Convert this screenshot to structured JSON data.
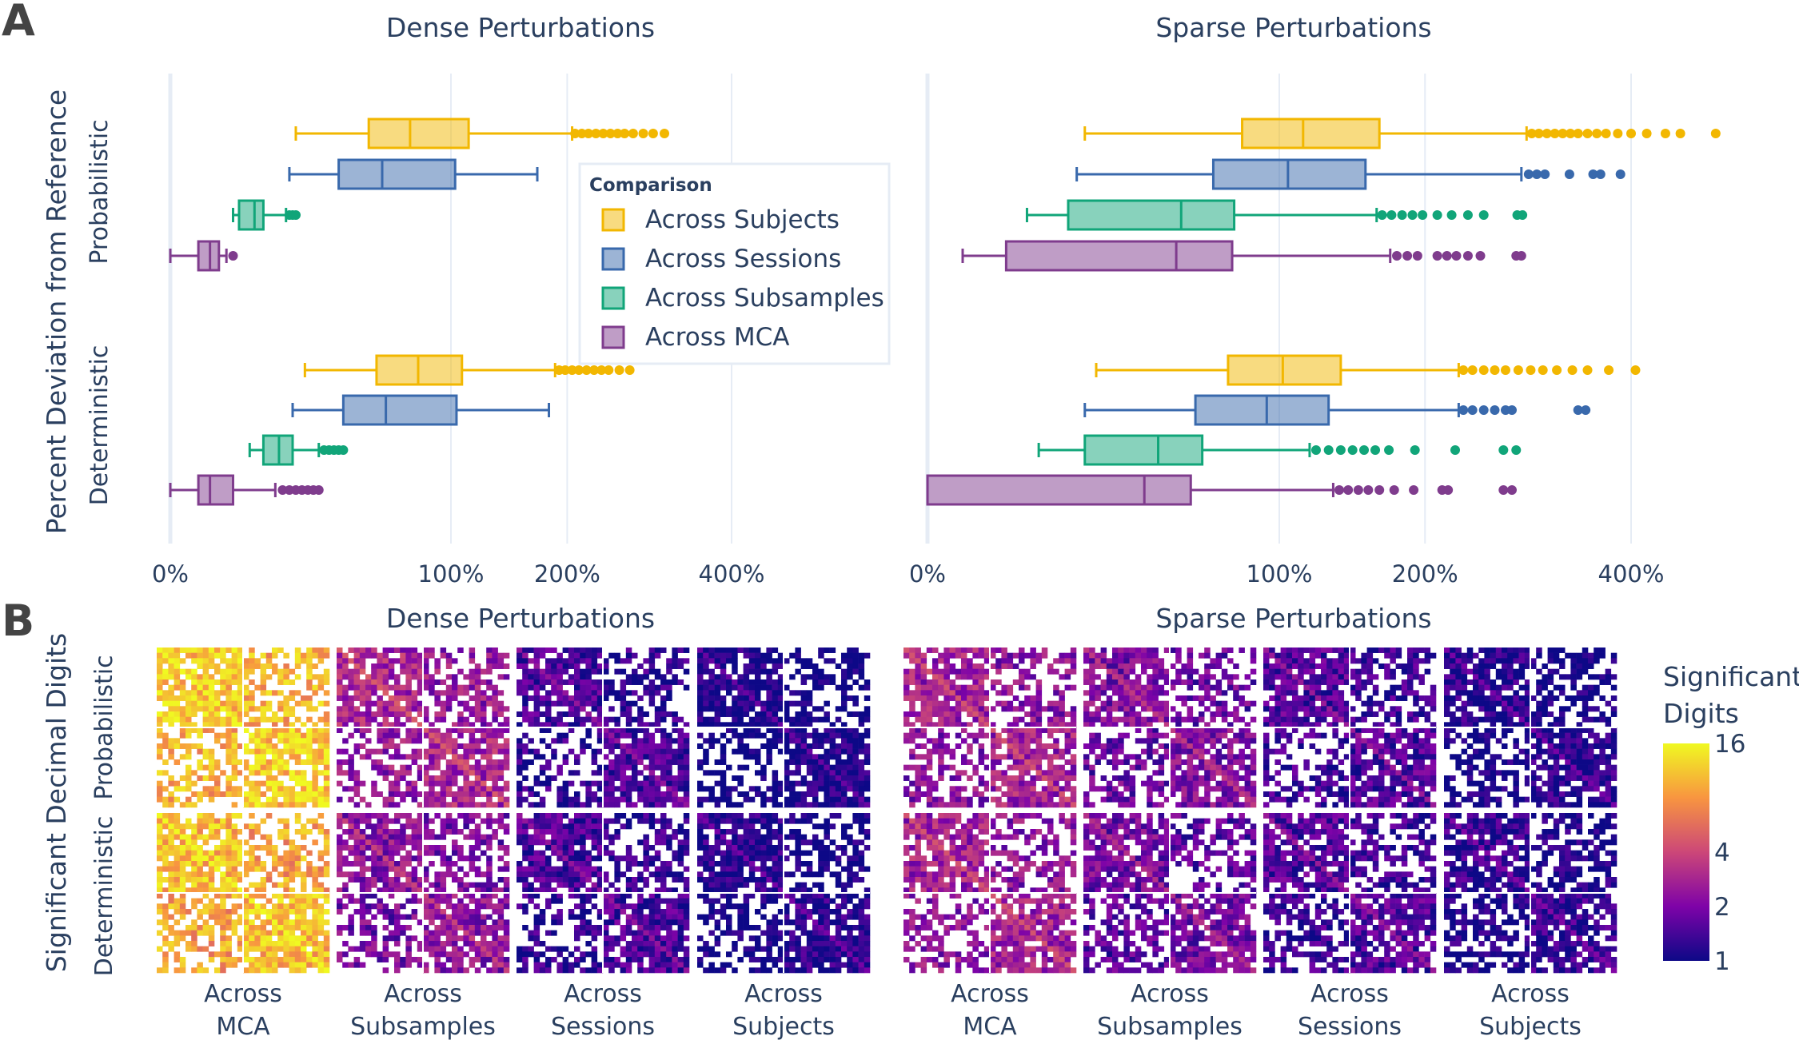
{
  "panels": {
    "a": "A",
    "b": "B"
  },
  "colors": {
    "Across Subjects": "#F2B701",
    "Across Sessions": "#3969AC",
    "Across Subsamples": "#11A579",
    "Across MCA": "#7F3C8D",
    "grid": "#E6ECF5",
    "text": "#2A3F5F"
  },
  "chart_data": [
    {
      "type": "box",
      "panel": "A",
      "orientation": "horizontal",
      "xaxis_ticks": [
        "0%",
        "100%",
        "200%",
        "400%"
      ],
      "ylabel": "Percent Deviation from Reference",
      "group_labels": [
        "Probabilistic",
        "Deterministic"
      ],
      "legend": {
        "title": "Comparison",
        "entries": [
          "Across Subjects",
          "Across Sessions",
          "Across Subsamples",
          "Across MCA"
        ],
        "placement": "center"
      },
      "subplots": [
        {
          "title": "Dense Perturbations",
          "groups": [
            {
              "name": "Probabilistic",
              "series": [
                {
                  "name": "Across Subjects",
                  "q1": 50,
                  "median": 73,
                  "q3": 113,
                  "lowerfence": 20,
                  "upperfence": 205,
                  "outliers": [
                    208,
                    215,
                    222,
                    230,
                    238,
                    246,
                    254,
                    262,
                    272,
                    284,
                    296,
                    310
                  ]
                },
                {
                  "name": "Across Sessions",
                  "q1": 36,
                  "median": 57,
                  "q3": 103,
                  "lowerfence": 18,
                  "upperfence": 171,
                  "outliers": []
                },
                {
                  "name": "Across Subsamples",
                  "q1": 6,
                  "median": 9,
                  "q3": 11,
                  "lowerfence": 5,
                  "upperfence": 17,
                  "outliers": [
                    18,
                    19,
                    20
                  ]
                },
                {
                  "name": "Across MCA",
                  "q1": 1,
                  "median": 2,
                  "q3": 3,
                  "lowerfence": 0,
                  "upperfence": 4,
                  "outliers": [
                    5
                  ]
                }
              ]
            },
            {
              "name": "Deterministic",
              "series": [
                {
                  "name": "Across Subjects",
                  "q1": 54,
                  "median": 78,
                  "q3": 108,
                  "lowerfence": 23,
                  "upperfence": 188,
                  "outliers": [
                    192,
                    198,
                    205,
                    212,
                    220,
                    228,
                    236,
                    244,
                    256,
                    268
                  ]
                },
                {
                  "name": "Across Sessions",
                  "q1": 38,
                  "median": 59,
                  "q3": 104,
                  "lowerfence": 19,
                  "upperfence": 182,
                  "outliers": []
                },
                {
                  "name": "Across Subsamples",
                  "q1": 11,
                  "median": 15,
                  "q3": 19,
                  "lowerfence": 8,
                  "upperfence": 28,
                  "outliers": [
                    30,
                    32,
                    34,
                    36,
                    38
                  ]
                },
                {
                  "name": "Across MCA",
                  "q1": 1,
                  "median": 2,
                  "q3": 5,
                  "lowerfence": 0,
                  "upperfence": 14,
                  "outliers": [
                    16,
                    18,
                    20,
                    22,
                    24,
                    26,
                    28
                  ]
                }
              ]
            }
          ]
        },
        {
          "title": "Sparse Perturbations",
          "groups": [
            {
              "name": "Probabilistic",
              "series": [
                {
                  "name": "Across Subjects",
                  "q1": 80,
                  "median": 114,
                  "q3": 165,
                  "lowerfence": 20,
                  "upperfence": 290,
                  "outliers": [
                    295,
                    302,
                    310,
                    318,
                    326,
                    334,
                    342,
                    352,
                    362,
                    372,
                    385,
                    400,
                    418,
                    440,
                    458,
                    502
                  ]
                },
                {
                  "name": "Across Sessions",
                  "q1": 66,
                  "median": 105,
                  "q3": 155,
                  "lowerfence": 18,
                  "upperfence": 285,
                  "outliers": [
                    292,
                    300,
                    308,
                    333,
                    358,
                    366,
                    388
                  ]
                },
                {
                  "name": "Across Subsamples",
                  "q1": 16,
                  "median": 52,
                  "q3": 76,
                  "lowerfence": 8,
                  "upperfence": 163,
                  "outliers": [
                    167,
                    174,
                    182,
                    190,
                    198,
                    210,
                    222,
                    236,
                    250,
                    281,
                    286
                  ]
                },
                {
                  "name": "Across MCA",
                  "q1": 5,
                  "median": 50,
                  "q3": 75,
                  "lowerfence": 1,
                  "upperfence": 173,
                  "outliers": [
                    178,
                    186,
                    194,
                    210,
                    218,
                    226,
                    236,
                    247,
                    280,
                    285
                  ]
                }
              ]
            },
            {
              "name": "Deterministic",
              "series": [
                {
                  "name": "Across Subjects",
                  "q1": 73,
                  "median": 102,
                  "q3": 138,
                  "lowerfence": 23,
                  "upperfence": 228,
                  "outliers": [
                    232,
                    240,
                    250,
                    260,
                    270,
                    282,
                    294,
                    306,
                    320,
                    336,
                    352,
                    375,
                    405
                  ]
                },
                {
                  "name": "Across Sessions",
                  "q1": 58,
                  "median": 93,
                  "q3": 130,
                  "lowerfence": 20,
                  "upperfence": 228,
                  "outliers": [
                    232,
                    240,
                    250,
                    260,
                    270,
                    276,
                    342,
                    350
                  ]
                },
                {
                  "name": "Across Subsamples",
                  "q1": 20,
                  "median": 43,
                  "q3": 61,
                  "lowerfence": 10,
                  "upperfence": 118,
                  "outliers": [
                    122,
                    130,
                    138,
                    146,
                    154,
                    162,
                    172,
                    192,
                    225,
                    268,
                    280
                  ]
                },
                {
                  "name": "Across MCA",
                  "q1": 0,
                  "median": 38,
                  "q3": 56,
                  "lowerfence": 0,
                  "upperfence": 133,
                  "outliers": [
                    137,
                    143,
                    150,
                    157,
                    165,
                    176,
                    191,
                    214,
                    219,
                    268,
                    276
                  ]
                }
              ]
            }
          ]
        }
      ]
    },
    {
      "type": "heatmap",
      "panel": "B",
      "ylabel": "Significant Decimal Digits",
      "row_labels": [
        "Probabilistic",
        "Deterministic"
      ],
      "colorbar": {
        "title": [
          "Significant",
          "Digits"
        ],
        "ticks": [
          "16",
          "4",
          "2",
          "1"
        ],
        "scale": "log",
        "colorscale": "plasma"
      },
      "subplots": [
        {
          "title": "Dense Perturbations",
          "columns": [
            {
              "label": [
                "Across",
                "MCA"
              ],
              "mean_digits": {
                "Probabilistic": 12,
                "Deterministic": 11
              }
            },
            {
              "label": [
                "Across",
                "Subsamples"
              ],
              "mean_digits": {
                "Probabilistic": 3,
                "Deterministic": 2.4
              }
            },
            {
              "label": [
                "Across",
                "Sessions"
              ],
              "mean_digits": {
                "Probabilistic": 1.5,
                "Deterministic": 1.5
              }
            },
            {
              "label": [
                "Across",
                "Subjects"
              ],
              "mean_digits": {
                "Probabilistic": 1.1,
                "Deterministic": 1.2
              }
            }
          ]
        },
        {
          "title": "Sparse Perturbations",
          "columns": [
            {
              "label": [
                "Across",
                "MCA"
              ],
              "mean_digits": {
                "Probabilistic": 2.8,
                "Deterministic": 2.8
              }
            },
            {
              "label": [
                "Across",
                "Subsamples"
              ],
              "mean_digits": {
                "Probabilistic": 2.2,
                "Deterministic": 2
              }
            },
            {
              "label": [
                "Across",
                "Sessions"
              ],
              "mean_digits": {
                "Probabilistic": 1.6,
                "Deterministic": 1.6
              }
            },
            {
              "label": [
                "Across",
                "Subjects"
              ],
              "mean_digits": {
                "Probabilistic": 1.2,
                "Deterministic": 1.3
              }
            }
          ]
        }
      ]
    }
  ]
}
